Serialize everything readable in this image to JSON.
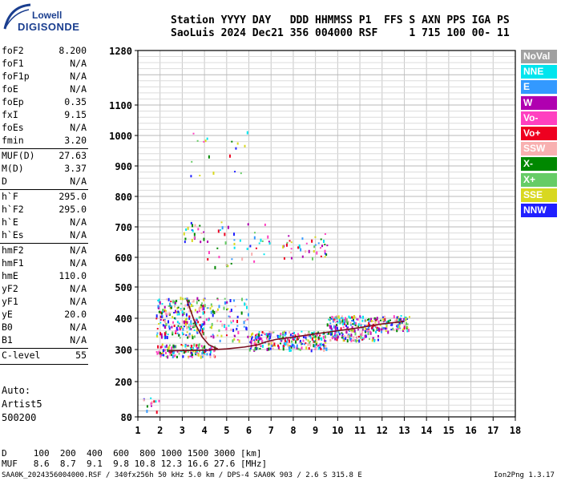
{
  "logo": {
    "top": "Lowell",
    "main": "DIGISONDE"
  },
  "header": {
    "line1": "Station YYYY DAY   DDD HHMMSS P1  FFS S AXN PPS IGA PS",
    "line2": "SaoLuis 2024 Dec21 356 004000 RSF     1 715 100 00- 11"
  },
  "params": [
    {
      "name": "foF2",
      "value": "8.200"
    },
    {
      "name": "foF1",
      "value": "N/A"
    },
    {
      "name": "foF1p",
      "value": "N/A"
    },
    {
      "name": "foE",
      "value": "N/A"
    },
    {
      "name": "foEp",
      "value": "0.35"
    },
    {
      "name": "fxI",
      "value": "9.15"
    },
    {
      "name": "foEs",
      "value": "N/A"
    },
    {
      "name": "fmin",
      "value": "3.20"
    },
    {
      "name": "MUF(D)",
      "value": "27.63"
    },
    {
      "name": "M(D)",
      "value": "3.37"
    },
    {
      "name": "D",
      "value": "N/A"
    },
    {
      "name": "h`F",
      "value": "295.0"
    },
    {
      "name": "h`F2",
      "value": "295.0"
    },
    {
      "name": "h`E",
      "value": "N/A"
    },
    {
      "name": "h`Es",
      "value": "N/A"
    },
    {
      "name": "hmF2",
      "value": "N/A"
    },
    {
      "name": "hmF1",
      "value": "N/A"
    },
    {
      "name": "hmE",
      "value": "110.0"
    },
    {
      "name": "yF2",
      "value": "N/A"
    },
    {
      "name": "yF1",
      "value": "N/A"
    },
    {
      "name": "yE",
      "value": "20.0"
    },
    {
      "name": "B0",
      "value": "N/A"
    },
    {
      "name": "B1",
      "value": "N/A"
    },
    {
      "name": "C-level",
      "value": "55"
    }
  ],
  "auto": {
    "line1": "Auto:",
    "line2": "Artist5",
    "line3": "500200"
  },
  "legend": [
    {
      "label": "NoVal",
      "color": "#a0a0a0"
    },
    {
      "label": "NNE",
      "color": "#00e5ee"
    },
    {
      "label": "E",
      "color": "#3399ff"
    },
    {
      "label": "W",
      "color": "#b000b0"
    },
    {
      "label": "Vo-",
      "color": "#ff40c0"
    },
    {
      "label": "Vo+",
      "color": "#ee0020"
    },
    {
      "label": "SSW",
      "color": "#f8b0b0"
    },
    {
      "label": "X-",
      "color": "#008800"
    },
    {
      "label": "X+",
      "color": "#66cc66"
    },
    {
      "label": "SSE",
      "color": "#d8d820"
    },
    {
      "label": "NNW",
      "color": "#2020ff"
    }
  ],
  "bottom": {
    "d_line": "D     100  200  400  600  800 1000 1500 3000 [km]",
    "muf_line": "MUF   8.6  8.7  9.1  9.8 10.8 12.3 16.6 27.6 [MHz]",
    "file_line": "SAA0K_2024356004000.RSF / 340fx256h 50 kHz 5.0 km / DPS-4 SAA0K 903 / 2.6 S 315.8 E",
    "version": "Ion2Png 1.3.17"
  },
  "chart_data": {
    "type": "scatter",
    "x_ticks": [
      1,
      2,
      3,
      4,
      5,
      6,
      7,
      8,
      9,
      10,
      11,
      12,
      13,
      14,
      15,
      16,
      17,
      18
    ],
    "y_tick_labels": [
      80,
      200,
      300,
      400,
      500,
      600,
      700,
      800,
      900,
      1000,
      1100,
      1280
    ],
    "xlim": [
      1,
      18
    ],
    "ylim": [
      80,
      1280
    ],
    "grid": true,
    "trace": {
      "name": "ionogram trace",
      "color": "#7a1020",
      "points": [
        [
          2.4,
          296
        ],
        [
          3.2,
          297
        ],
        [
          4.0,
          298
        ],
        [
          5.0,
          302
        ],
        [
          5.8,
          308
        ],
        [
          6.4,
          315
        ],
        [
          6.8,
          325
        ],
        [
          7.2,
          332
        ],
        [
          8.0,
          340
        ],
        [
          9.0,
          350
        ],
        [
          10.0,
          360
        ],
        [
          11.0,
          370
        ],
        [
          12.0,
          382
        ],
        [
          13.0,
          390
        ]
      ]
    },
    "x_trace": {
      "name": "x-trace",
      "color": "#7a1020",
      "points": [
        [
          3.2,
          460
        ],
        [
          3.4,
          420
        ],
        [
          3.6,
          380
        ],
        [
          3.9,
          340
        ],
        [
          4.2,
          315
        ],
        [
          4.6,
          302
        ]
      ]
    },
    "echo_clusters": [
      {
        "x": [
          1.8,
          4.5
        ],
        "y": [
          280,
          320
        ],
        "n": 140
      },
      {
        "x": [
          1.8,
          4.0
        ],
        "y": [
          340,
          470
        ],
        "n": 240
      },
      {
        "x": [
          4.0,
          6.0
        ],
        "y": [
          330,
          470
        ],
        "n": 80
      },
      {
        "x": [
          6.0,
          9.5
        ],
        "y": [
          300,
          360
        ],
        "n": 260
      },
      {
        "x": [
          9.5,
          11.8
        ],
        "y": [
          330,
          410
        ],
        "n": 240
      },
      {
        "x": [
          11.8,
          13.2
        ],
        "y": [
          360,
          410
        ],
        "n": 90
      },
      {
        "x": [
          7.5,
          9.5
        ],
        "y": [
          600,
          680
        ],
        "n": 40
      },
      {
        "x": [
          4.0,
          7.0
        ],
        "y": [
          560,
          720
        ],
        "n": 40
      },
      {
        "x": [
          3.0,
          4.0
        ],
        "y": [
          650,
          720
        ],
        "n": 20
      },
      {
        "x": [
          3.3,
          6.0
        ],
        "y": [
          870,
          1030
        ],
        "n": 18
      },
      {
        "x": [
          1.2,
          2.0
        ],
        "y": [
          100,
          150
        ],
        "n": 12
      }
    ]
  }
}
